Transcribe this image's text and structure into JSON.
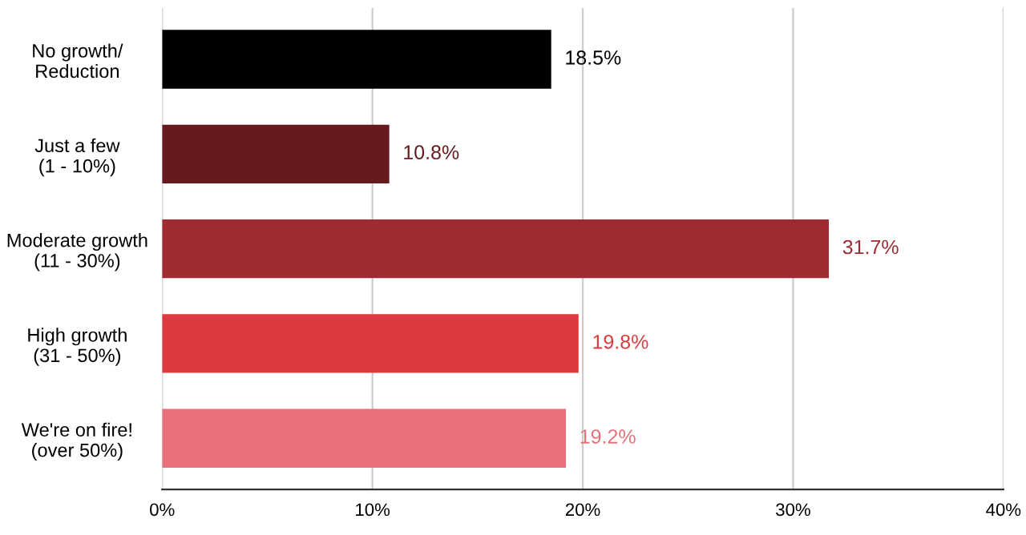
{
  "chart_data": {
    "type": "bar",
    "orientation": "horizontal",
    "categories": [
      "No growth/\nReduction",
      "Just a few\n(1 - 10%)",
      "Moderate growth\n(11 - 30%)",
      "High growth\n(31 - 50%)",
      "We're on fire!\n(over 50%)"
    ],
    "values": [
      18.5,
      10.8,
      31.7,
      19.8,
      19.2
    ],
    "value_labels": [
      "18.5%",
      "10.8%",
      "31.7%",
      "19.8%",
      "19.2%"
    ],
    "colors": [
      "#000000",
      "#661a1f",
      "#9e2a32",
      "#dc3a3f",
      "#e8707a"
    ],
    "xlim": [
      0,
      40
    ],
    "xticks": [
      {
        "value": 0,
        "label": "0%"
      },
      {
        "value": 10,
        "label": "10%"
      },
      {
        "value": 20,
        "label": "20%"
      },
      {
        "value": 30,
        "label": "30%"
      },
      {
        "value": 40,
        "label": "40%"
      }
    ],
    "grid": "x"
  }
}
